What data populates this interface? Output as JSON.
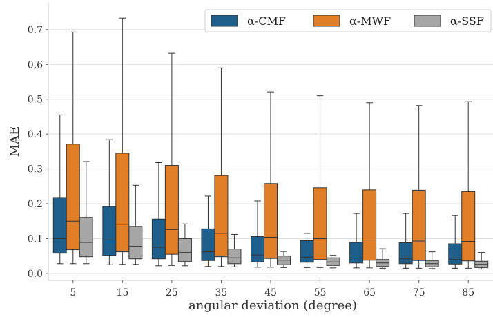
{
  "chart_data": {
    "type": "box",
    "title": "",
    "xlabel": "angular deviation (degree)",
    "ylabel": "MAE",
    "categories": [
      "5",
      "15",
      "25",
      "35",
      "45",
      "55",
      "65",
      "75",
      "85"
    ],
    "ylim": [
      -0.02,
      0.775
    ],
    "yticks": [
      "0.0",
      "0.1",
      "0.2",
      "0.3",
      "0.4",
      "0.5",
      "0.6",
      "0.7"
    ],
    "grid": true,
    "legend_position": "top-right",
    "series": [
      {
        "name": "α-CMF",
        "color": "#1f5f8b",
        "boxes": [
          {
            "min": 0.028,
            "q1": 0.058,
            "median": 0.1,
            "q3": 0.218,
            "max": 0.455
          },
          {
            "min": 0.025,
            "q1": 0.052,
            "median": 0.09,
            "q3": 0.192,
            "max": 0.384
          },
          {
            "min": 0.022,
            "q1": 0.042,
            "median": 0.075,
            "q3": 0.156,
            "max": 0.318
          },
          {
            "min": 0.02,
            "q1": 0.037,
            "median": 0.062,
            "q3": 0.128,
            "max": 0.222
          },
          {
            "min": 0.018,
            "q1": 0.033,
            "median": 0.053,
            "q3": 0.106,
            "max": 0.208
          },
          {
            "min": 0.017,
            "q1": 0.032,
            "median": 0.047,
            "q3": 0.094,
            "max": 0.115
          },
          {
            "min": 0.016,
            "q1": 0.03,
            "median": 0.044,
            "q3": 0.089,
            "max": 0.172
          },
          {
            "min": 0.015,
            "q1": 0.028,
            "median": 0.042,
            "q3": 0.088,
            "max": 0.172
          },
          {
            "min": 0.015,
            "q1": 0.027,
            "median": 0.04,
            "q3": 0.085,
            "max": 0.166
          }
        ]
      },
      {
        "name": "α-MWF",
        "color": "#e07f28",
        "boxes": [
          {
            "min": 0.028,
            "q1": 0.068,
            "median": 0.15,
            "q3": 0.371,
            "max": 0.693
          },
          {
            "min": 0.026,
            "q1": 0.062,
            "median": 0.141,
            "q3": 0.345,
            "max": 0.733
          },
          {
            "min": 0.023,
            "q1": 0.055,
            "median": 0.126,
            "q3": 0.31,
            "max": 0.632
          },
          {
            "min": 0.02,
            "q1": 0.048,
            "median": 0.115,
            "q3": 0.281,
            "max": 0.59
          },
          {
            "min": 0.018,
            "q1": 0.043,
            "median": 0.104,
            "q3": 0.258,
            "max": 0.521
          },
          {
            "min": 0.017,
            "q1": 0.04,
            "median": 0.1,
            "q3": 0.246,
            "max": 0.51
          },
          {
            "min": 0.016,
            "q1": 0.038,
            "median": 0.096,
            "q3": 0.24,
            "max": 0.49
          },
          {
            "min": 0.015,
            "q1": 0.037,
            "median": 0.093,
            "q3": 0.239,
            "max": 0.482
          },
          {
            "min": 0.015,
            "q1": 0.036,
            "median": 0.092,
            "q3": 0.235,
            "max": 0.493
          }
        ]
      },
      {
        "name": "α-SSF",
        "color": "#a6a6a6",
        "boxes": [
          {
            "min": 0.028,
            "q1": 0.048,
            "median": 0.089,
            "q3": 0.161,
            "max": 0.321
          },
          {
            "min": 0.026,
            "q1": 0.042,
            "median": 0.078,
            "q3": 0.135,
            "max": 0.253
          },
          {
            "min": 0.022,
            "q1": 0.034,
            "median": 0.06,
            "q3": 0.1,
            "max": 0.142
          },
          {
            "min": 0.019,
            "q1": 0.028,
            "median": 0.045,
            "q3": 0.07,
            "max": 0.112
          },
          {
            "min": 0.017,
            "q1": 0.025,
            "median": 0.038,
            "q3": 0.05,
            "max": 0.063
          },
          {
            "min": 0.016,
            "q1": 0.023,
            "median": 0.033,
            "q3": 0.045,
            "max": 0.052
          },
          {
            "min": 0.015,
            "q1": 0.02,
            "median": 0.03,
            "q3": 0.04,
            "max": 0.071
          },
          {
            "min": 0.014,
            "q1": 0.019,
            "median": 0.028,
            "q3": 0.037,
            "max": 0.062
          },
          {
            "min": 0.013,
            "q1": 0.017,
            "median": 0.026,
            "q3": 0.035,
            "max": 0.06
          }
        ]
      }
    ]
  }
}
